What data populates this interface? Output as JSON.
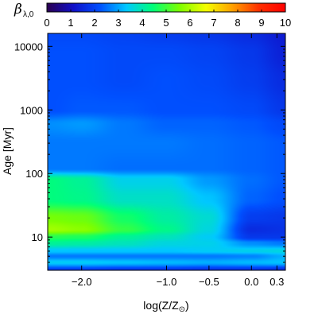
{
  "chart_data": {
    "type": "heatmap",
    "colorbar": {
      "label_symbol": "β",
      "label_subscript": "λ,0",
      "range": [
        0,
        10
      ],
      "ticks": [
        "0",
        "1",
        "2",
        "3",
        "4",
        "5",
        "6",
        "7",
        "8",
        "9",
        "10"
      ],
      "colormap": [
        "#2b0050",
        "#1010c8",
        "#0050ff",
        "#00c8ff",
        "#00ff78",
        "#7cff00",
        "#f4ff00",
        "#ffa000",
        "#ff3000",
        "#ff0000"
      ]
    },
    "x_axis": {
      "label": "log(Z/Z",
      "label_sun": "⊙",
      "label_close": ")",
      "range": [
        -2.4,
        0.4
      ],
      "ticks": [
        {
          "value": -2.0,
          "label": "−2.0"
        },
        {
          "value": -1.0,
          "label": "−1.0"
        },
        {
          "value": -0.5,
          "label": "−0.5"
        },
        {
          "value": 0.0,
          "label": "0.0"
        },
        {
          "value": 0.3,
          "label": "0.3"
        }
      ]
    },
    "y_axis": {
      "label": "Age [Myr]",
      "scale": "log",
      "range": [
        3,
        16000
      ],
      "ticks": [
        {
          "value": 10,
          "label": "10"
        },
        {
          "value": 100,
          "label": "100"
        },
        {
          "value": 1000,
          "label": "1000"
        },
        {
          "value": 10000,
          "label": "10000"
        }
      ]
    },
    "metallicity_columns": [
      -2.4,
      -2.0,
      -1.5,
      -1.0,
      -0.5,
      0.0,
      0.4
    ],
    "age_rows": [
      {
        "age": 3.0,
        "values": [
          1.9,
          1.9,
          1.8,
          1.8,
          1.7,
          1.7,
          1.6
        ]
      },
      {
        "age": 4.0,
        "values": [
          3.4,
          3.4,
          3.3,
          3.2,
          3.1,
          3.2,
          3.3
        ]
      },
      {
        "age": 5.0,
        "values": [
          2.6,
          2.6,
          2.6,
          2.6,
          2.6,
          2.7,
          3.1
        ]
      },
      {
        "age": 6.0,
        "values": [
          3.3,
          3.3,
          3.3,
          3.3,
          3.4,
          3.5,
          3.6
        ]
      },
      {
        "age": 8.0,
        "values": [
          4.2,
          4.1,
          3.9,
          3.6,
          3.5,
          2.8,
          2.6
        ]
      },
      {
        "age": 10.0,
        "values": [
          4.8,
          4.7,
          4.2,
          3.9,
          3.4,
          1.8,
          1.8
        ]
      },
      {
        "age": 13.0,
        "values": [
          5.9,
          5.7,
          4.9,
          4.3,
          3.6,
          1.6,
          1.7
        ]
      },
      {
        "age": 20.0,
        "values": [
          5.5,
          5.4,
          4.6,
          4.1,
          3.7,
          1.9,
          1.8
        ]
      },
      {
        "age": 40.0,
        "values": [
          4.4,
          4.3,
          3.8,
          3.8,
          3.3,
          2.4,
          2.2
        ]
      },
      {
        "age": 80.0,
        "values": [
          4.4,
          4.2,
          3.5,
          3.5,
          2.9,
          2.5,
          2.3
        ]
      },
      {
        "age": 120.0,
        "values": [
          2.6,
          2.6,
          2.5,
          2.5,
          2.5,
          2.4,
          2.3
        ]
      },
      {
        "age": 300.0,
        "values": [
          2.6,
          2.6,
          2.6,
          2.6,
          2.5,
          2.4,
          2.3
        ]
      },
      {
        "age": 600.0,
        "values": [
          2.8,
          2.9,
          2.6,
          2.4,
          2.4,
          2.3,
          2.1
        ]
      },
      {
        "age": 1000,
        "values": [
          2.2,
          2.3,
          2.3,
          2.2,
          2.2,
          2.1,
          1.8
        ]
      },
      {
        "age": 3000,
        "values": [
          2.2,
          2.2,
          2.1,
          2.2,
          2.1,
          1.9,
          1.6
        ]
      },
      {
        "age": 8000,
        "values": [
          2.2,
          2.2,
          2.1,
          2.1,
          2.0,
          1.8,
          1.4
        ]
      },
      {
        "age": 16000,
        "values": [
          2.1,
          2.1,
          2.0,
          1.9,
          1.8,
          1.6,
          1.3
        ]
      }
    ]
  }
}
